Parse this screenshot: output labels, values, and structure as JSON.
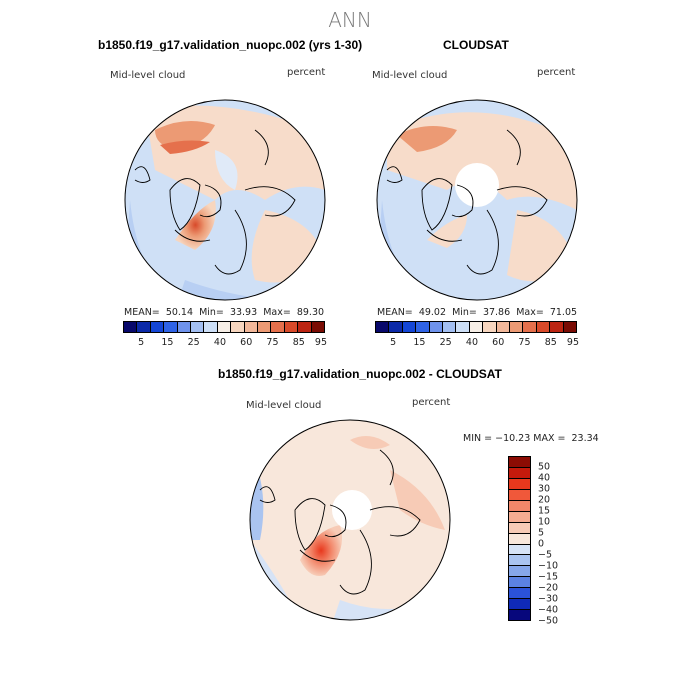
{
  "title": "ANN",
  "panels": [
    {
      "title": "b1850.f19_g17.validation_nuopc.002 (yrs 1-30)",
      "variable": "Mid-level cloud",
      "units": "percent",
      "stats": {
        "mean": "50.14",
        "min": "33.93",
        "max": "89.30"
      },
      "colorbar_labels": [
        "5",
        "15",
        "25",
        "40",
        "60",
        "75",
        "85",
        "95"
      ]
    },
    {
      "title": "CLOUDSAT",
      "variable": "Mid-level cloud",
      "units": "percent",
      "stats": {
        "mean": "49.02",
        "min": "37.86",
        "max": "71.05"
      },
      "colorbar_labels": [
        "5",
        "15",
        "25",
        "40",
        "60",
        "75",
        "85",
        "95"
      ]
    }
  ],
  "diff": {
    "title": "b1850.f19_g17.validation_nuopc.002 - CLOUDSAT",
    "variable": "Mid-level cloud",
    "units": "percent",
    "stats_text": "MIN = −10.23 MAX =  23.34",
    "colorbar_labels": [
      "50",
      "40",
      "30",
      "20",
      "15",
      "10",
      "5",
      "0",
      "−5",
      "−10",
      "−15",
      "−20",
      "−30",
      "−40",
      "−50"
    ]
  },
  "labels": {
    "mean": "MEAN=",
    "min": "Min=",
    "max": "Max="
  },
  "colors": {
    "abs_scale": [
      "#08086b",
      "#0c2aa8",
      "#1446d6",
      "#2f63e6",
      "#6f93ec",
      "#a3bff2",
      "#cddff7",
      "#f6eee6",
      "#f7d6bf",
      "#f2b89a",
      "#ec9a74",
      "#e5704c",
      "#d84a2a",
      "#bc2512",
      "#7a0c04"
    ],
    "diff_scale": [
      "#8c0c04",
      "#c41a0c",
      "#e8381d",
      "#f0583a",
      "#f2876a",
      "#f5ad92",
      "#f7cbb6",
      "#f8e7db",
      "#d6e3f6",
      "#aac4f0",
      "#86a7ea",
      "#5b82e3",
      "#2b52d8",
      "#0f2ab8",
      "#07077c"
    ],
    "bg_light_blue": "#cfe0f6",
    "bg_peach": "#f7dcca"
  }
}
